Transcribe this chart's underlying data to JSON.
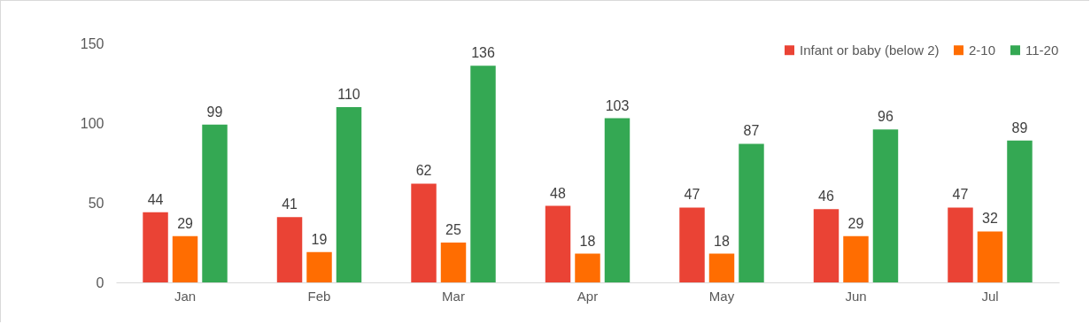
{
  "chart_data": {
    "type": "bar",
    "categories": [
      "Jan",
      "Feb",
      "Mar",
      "Apr",
      "May",
      "Jun",
      "Jul"
    ],
    "series": [
      {
        "name": "Infant or baby (below 2)",
        "color": "#ea4335",
        "values": [
          44,
          41,
          62,
          48,
          47,
          46,
          47
        ]
      },
      {
        "name": "2-10",
        "color": "#ff6d01",
        "values": [
          29,
          19,
          25,
          18,
          18,
          29,
          32
        ]
      },
      {
        "name": "11-20",
        "color": "#34a853",
        "values": [
          99,
          110,
          136,
          103,
          87,
          96,
          89
        ]
      }
    ],
    "ylim": [
      0,
      150
    ],
    "yticks": [
      0,
      50,
      100,
      150
    ],
    "grid": false,
    "legend": "top right",
    "data_labels": true
  }
}
